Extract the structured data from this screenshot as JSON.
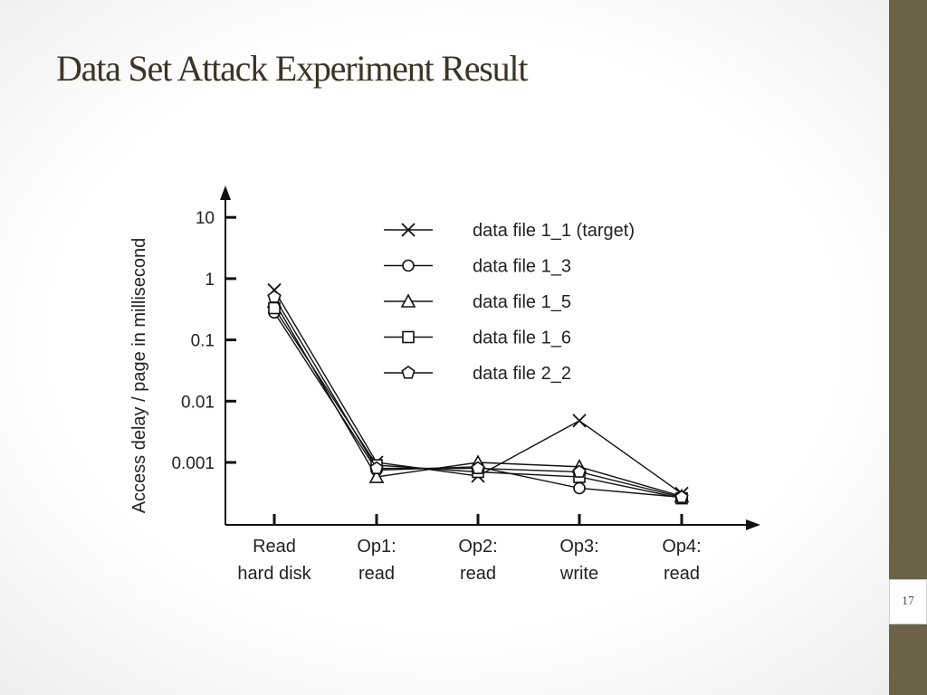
{
  "slide": {
    "title": "Data Set Attack Experiment Result",
    "page_number": "17"
  },
  "chart_data": {
    "type": "line",
    "ylabel": "Access delay / page in millisecond",
    "yscale": "log",
    "yticks": [
      {
        "value": 10,
        "label": "10"
      },
      {
        "value": 1,
        "label": "1"
      },
      {
        "value": 0.1,
        "label": "0.1"
      },
      {
        "value": 0.01,
        "label": "0.01"
      },
      {
        "value": 0.001,
        "label": "0.001"
      }
    ],
    "ylim": [
      0.0001,
      20
    ],
    "categories": [
      {
        "line1": "Read",
        "line2": "hard disk"
      },
      {
        "line1": "Op1:",
        "line2": "read"
      },
      {
        "line1": "Op2:",
        "line2": "read"
      },
      {
        "line1": "Op3:",
        "line2": "write"
      },
      {
        "line1": "Op4:",
        "line2": "read"
      }
    ],
    "legend_position": "top-right",
    "series": [
      {
        "name": "data file 1_1 (target)",
        "marker": "x",
        "values": [
          0.65,
          0.001,
          0.0006,
          0.0048,
          0.00031
        ]
      },
      {
        "name": "data file 1_3",
        "marker": "circle",
        "values": [
          0.28,
          0.00075,
          0.00085,
          0.00038,
          0.00027
        ]
      },
      {
        "name": "data file 1_5",
        "marker": "triangle",
        "values": [
          0.42,
          0.00058,
          0.001,
          0.00085,
          0.00028
        ]
      },
      {
        "name": "data file 1_6",
        "marker": "square",
        "values": [
          0.33,
          0.0009,
          0.0007,
          0.00058,
          0.00026
        ]
      },
      {
        "name": "data file 2_2",
        "marker": "pentagon",
        "values": [
          0.5,
          0.0008,
          0.0008,
          0.0007,
          0.00027
        ]
      }
    ]
  }
}
